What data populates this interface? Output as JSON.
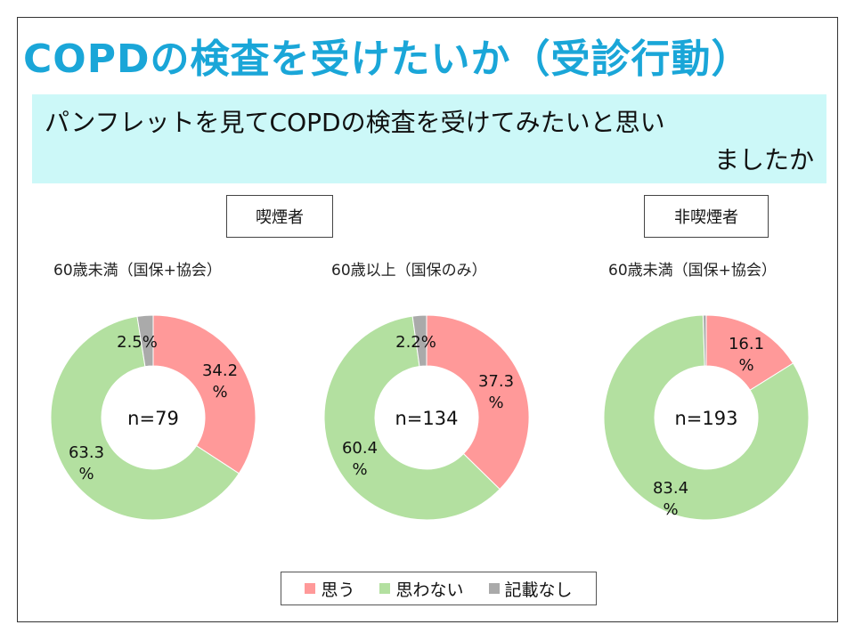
{
  "title": "COPDの検査を受けたいか（受診行動）",
  "question": {
    "line1": "パンフレットを見てCOPDの検査を受けてみたいと思い",
    "line2": "ましたか"
  },
  "groups": {
    "smokers": "喫煙者",
    "nonsmokers": "非喫煙者"
  },
  "colors": {
    "yes": "#ff9999",
    "no": "#b3e0a0",
    "none": "#aaaaaa"
  },
  "chart_data": [
    {
      "type": "pie",
      "group": "喫煙者",
      "subtitle": "60歳未満（国保+協会）",
      "center_label": "n=79",
      "categories": [
        "思う",
        "思わない",
        "記載なし"
      ],
      "values": [
        34.2,
        63.3,
        2.5
      ],
      "labels": [
        "34.2\n%",
        "63.3\n%",
        "2.5%"
      ]
    },
    {
      "type": "pie",
      "group": "喫煙者",
      "subtitle": "60歳以上（国保のみ）",
      "center_label": "n=134",
      "categories": [
        "思う",
        "思わない",
        "記載なし"
      ],
      "values": [
        37.3,
        60.4,
        2.2
      ],
      "labels": [
        "37.3\n%",
        "60.4\n%",
        "2.2%"
      ]
    },
    {
      "type": "pie",
      "group": "非喫煙者",
      "subtitle": "60歳未満（国保+協会）",
      "center_label": "n=193",
      "categories": [
        "思う",
        "思わない",
        "記載なし"
      ],
      "values": [
        16.1,
        83.4,
        0.5
      ],
      "labels": [
        "16.1\n%",
        "83.4\n%",
        ""
      ]
    }
  ],
  "legend": {
    "placement": "bottom",
    "items": [
      "思う",
      "思わない",
      "記載なし"
    ]
  }
}
